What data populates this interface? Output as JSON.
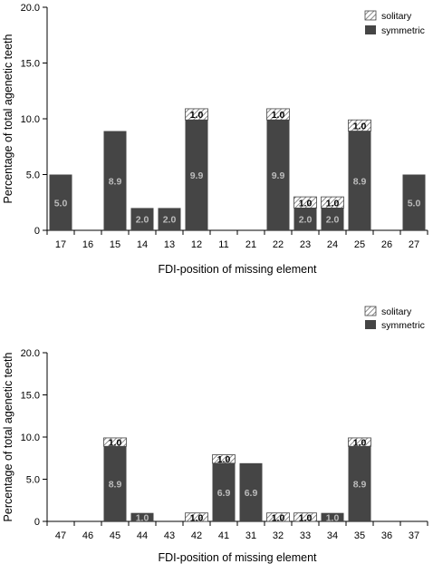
{
  "colors": {
    "symmetric": "#454545",
    "solitary_hatch": "#8a8a8a",
    "axis": "#000000",
    "bar_label": "#bcbcbc"
  },
  "chart_data": [
    {
      "type": "bar",
      "stacked": true,
      "title": "",
      "xlabel": "FDI-position of missing element",
      "ylabel": "Percentage of total agenetic teeth",
      "ylim": [
        0,
        20
      ],
      "yticks": [
        "0",
        "5.0",
        "10.0",
        "15.0",
        "20.0"
      ],
      "yticks_values": [
        0,
        5,
        10,
        15,
        20
      ],
      "grid": false,
      "legend_position": "top-right",
      "categories": [
        "17",
        "16",
        "15",
        "14",
        "13",
        "12",
        "11",
        "21",
        "22",
        "23",
        "24",
        "25",
        "26",
        "27"
      ],
      "series": [
        {
          "name": "symmetric",
          "values": [
            5.0,
            0,
            8.9,
            2.0,
            2.0,
            9.9,
            0,
            0,
            9.9,
            2.0,
            2.0,
            8.9,
            0,
            5.0
          ],
          "labels": [
            "5.0",
            "",
            "8.9",
            "2.0",
            "2.0",
            "9.9",
            "",
            "",
            "9.9",
            "2.0",
            "2.0",
            "8.9",
            "",
            "5.0"
          ]
        },
        {
          "name": "solitary",
          "values": [
            0,
            0,
            0,
            0,
            0,
            1.0,
            0,
            0,
            1.0,
            1.0,
            1.0,
            1.0,
            0,
            0
          ],
          "labels": [
            "",
            "",
            "",
            "",
            "",
            "1.0",
            "",
            "",
            "1.0",
            "1.0",
            "1.0",
            "1.0",
            "",
            ""
          ]
        }
      ]
    },
    {
      "type": "bar",
      "stacked": true,
      "title": "",
      "xlabel": "FDI-position of missing element",
      "ylabel": "Percentage of total agenetic teeth",
      "ylim": [
        0,
        20
      ],
      "yticks": [
        "0",
        "5.0",
        "10.0",
        "15.0",
        "20.0"
      ],
      "yticks_values": [
        0,
        5,
        10,
        15,
        20
      ],
      "grid": false,
      "legend_position": "top-right",
      "categories": [
        "47",
        "46",
        "45",
        "44",
        "43",
        "42",
        "41",
        "31",
        "32",
        "33",
        "34",
        "35",
        "36",
        "37"
      ],
      "series": [
        {
          "name": "symmetric",
          "values": [
            0,
            0,
            8.9,
            1.0,
            0,
            0,
            6.9,
            6.9,
            0,
            0,
            1.0,
            8.9,
            0,
            0
          ],
          "labels": [
            "",
            "",
            "8.9",
            "1.0",
            "",
            "",
            "6.9",
            "6.9",
            "",
            "",
            "1.0",
            "8.9",
            "",
            ""
          ]
        },
        {
          "name": "solitary",
          "values": [
            0,
            0,
            1.0,
            0,
            0,
            1.0,
            1.0,
            0,
            1.0,
            1.0,
            0,
            1.0,
            0,
            0
          ],
          "labels": [
            "",
            "",
            "1.0",
            "",
            "",
            "1.0",
            "1.0",
            "",
            "1.0",
            "1.0",
            "",
            "1.0",
            "",
            ""
          ]
        }
      ]
    }
  ]
}
